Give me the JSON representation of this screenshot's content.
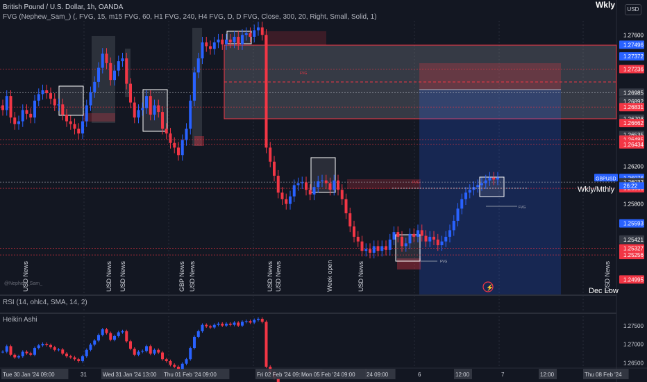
{
  "header": {
    "symbol": "British Pound / U.S. Dollar, 1h, OANDA",
    "indicator": "FVG (Nephew_Sam_) (, FVG, 15, m15 FVG, 60, H1 FVG, 240, H4 FVG, D, D FVG, Close, 300, 20, Right, Small, Solid, 1)",
    "timeframe_label": "Wkly",
    "currency": "USD"
  },
  "price_axis": {
    "labels": [
      "1.27600",
      "1.27496",
      "1.27372",
      "1.27236",
      "1.26985",
      "1.26892",
      "1.26831",
      "1.26708",
      "1.26662",
      "1.26535",
      "1.26485",
      "1.26434",
      "1.26200",
      "1.26076",
      "1.26032",
      "1.25966",
      "1.25800",
      "1.25593",
      "1.25421",
      "1.25327",
      "1.25256",
      "1.24995"
    ],
    "symbol_tag": "GBPUSD",
    "last_price": "1.26076",
    "countdown": "26:22",
    "tag_colors": {
      "red": "#f23645",
      "blue": "#2962ff",
      "dark": "#363a45"
    }
  },
  "annotations": {
    "wkly_mthly": "Wkly/Mthly",
    "dec_low": "Dec Low",
    "fvg": "FVG",
    "news": [
      "USD News",
      "USD News",
      "USD News",
      "GBP News",
      "USD News",
      "USD News",
      "USD News",
      "Week open",
      "USD News",
      "USD News"
    ],
    "watermark": "@Nephew_Sam_"
  },
  "rsi_panel": {
    "label": "RSI (14, ohlc4, SMA, 14, 2)"
  },
  "ha_panel": {
    "label": "Heikin Ashi",
    "price_labels": [
      "1.27500",
      "1.27000",
      "1.26500"
    ]
  },
  "time_axis": {
    "labels": [
      "Tue 30 Jan '24  09:00",
      "31",
      "Wed 31 Jan '24  13:00",
      "Thu 01 Feb '24  09:00",
      "Fri 02 Feb '24  09:00",
      "Mon 05 Feb '24  09:00",
      "24  09:00",
      "6",
      "12:00",
      "7",
      "12:00",
      "Thu 08 Feb '24"
    ]
  },
  "chart_data": {
    "type": "candlestick",
    "series": [
      {
        "name": "GBPUSD",
        "close": [
          1.268,
          1.2695,
          1.2672,
          1.2665,
          1.2668,
          1.268,
          1.2676,
          1.2672,
          1.269,
          1.2697,
          1.2701,
          1.2698,
          1.2692,
          1.2685,
          1.2686,
          1.2675,
          1.2668,
          1.2665,
          1.266,
          1.2655,
          1.2668,
          1.2685,
          1.2699,
          1.271,
          1.2725,
          1.274,
          1.273,
          1.2712,
          1.2722,
          1.2732,
          1.2735,
          1.2708,
          1.2688,
          1.2672,
          1.268,
          1.2682,
          1.2695,
          1.2675,
          1.2685,
          1.2678,
          1.266,
          1.2655,
          1.2645,
          1.264,
          1.2632,
          1.2648,
          1.266,
          1.269,
          1.272,
          1.2735,
          1.2752,
          1.2748,
          1.2745,
          1.2752,
          1.2755,
          1.275,
          1.2755,
          1.2752,
          1.2758,
          1.275,
          1.276,
          1.2762,
          1.2758,
          1.2765,
          1.2768,
          1.276,
          1.264,
          1.2625,
          1.261,
          1.2592,
          1.2585,
          1.258,
          1.2588,
          1.26,
          1.2602,
          1.2603,
          1.2595,
          1.259,
          1.2598,
          1.2604,
          1.2605,
          1.2602,
          1.2595,
          1.2605,
          1.2595,
          1.2585,
          1.257,
          1.2556,
          1.2545,
          1.254,
          1.253,
          1.2532,
          1.2528,
          1.2535,
          1.253,
          1.2535,
          1.2531,
          1.2542,
          1.255,
          1.2545,
          1.2535,
          1.2538,
          1.2548,
          1.2545,
          1.2552,
          1.2546,
          1.254,
          1.2545,
          1.2542,
          1.2536,
          1.254,
          1.2545,
          1.2552,
          1.2562,
          1.2575,
          1.2585,
          1.2592,
          1.2595,
          1.2598,
          1.26,
          1.2602,
          1.2605,
          1.2608,
          1.2606,
          1.2608
        ]
      }
    ],
    "ylim": [
      1.2485,
      1.2775
    ],
    "fvg_zones": [
      {
        "top": 1.27372,
        "bottom": 1.26662,
        "label": "FVG"
      }
    ],
    "horizontal_levels": [
      1.27236,
      1.26985,
      1.26831,
      1.26485,
      1.26434,
      1.26032,
      1.25966,
      1.25327,
      1.25256
    ]
  }
}
